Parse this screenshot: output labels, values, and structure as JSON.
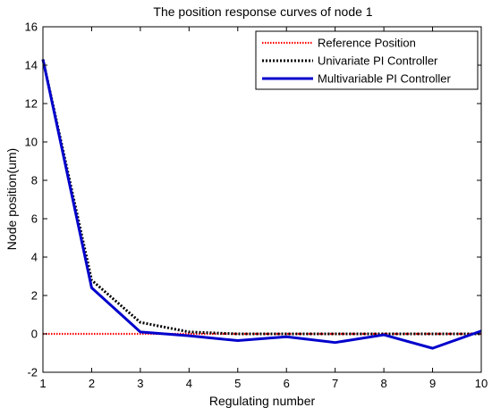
{
  "chart_data": {
    "type": "line",
    "title": "The position response curves of node 1",
    "xlabel": "Regulating number",
    "ylabel": "Node position(um)",
    "xlim": [
      1,
      10
    ],
    "ylim": [
      -2,
      16
    ],
    "xticks": [
      1,
      2,
      3,
      4,
      5,
      6,
      7,
      8,
      9,
      10
    ],
    "yticks": [
      -2,
      0,
      2,
      4,
      6,
      8,
      10,
      12,
      14,
      16
    ],
    "grid": false,
    "legend_position": "top-right",
    "x": [
      1,
      2,
      3,
      4,
      5,
      6,
      7,
      8,
      9,
      10
    ],
    "series": [
      {
        "name": "Reference Position",
        "values": [
          0,
          0,
          0,
          0,
          0,
          0,
          0,
          0,
          0,
          0
        ],
        "color": "#ff0000",
        "style": "dotted"
      },
      {
        "name": "Univariate PI Controller",
        "values": [
          14.3,
          2.8,
          0.6,
          0.1,
          0.0,
          0.0,
          0.0,
          0.0,
          0.0,
          0.0
        ],
        "color": "#000000",
        "style": "dotted"
      },
      {
        "name": "Multivariable PI Controller",
        "values": [
          14.3,
          2.4,
          0.1,
          -0.1,
          -0.35,
          -0.15,
          -0.45,
          -0.05,
          -0.75,
          0.15
        ],
        "color": "#0000cc",
        "style": "solid"
      }
    ]
  }
}
